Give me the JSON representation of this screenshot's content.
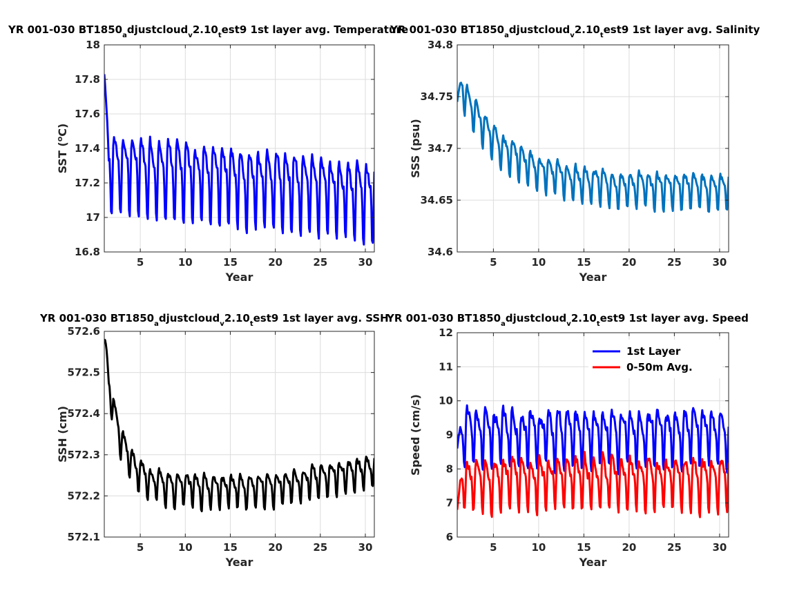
{
  "chart_data": [
    {
      "id": "sst",
      "type": "line",
      "title": {
        "pre": "YR 001-030 BT1850",
        "s1": "a",
        "m1": "djustcloud",
        "s2": "v",
        "m2": "2.10",
        "s3": "t",
        "post": "est9 1st layer avg. Temperature"
      },
      "xlabel": "Year",
      "ylabel": "SST (",
      "ylabel_sup": "o",
      "ylabel_end": "C)",
      "xlim": [
        1,
        31
      ],
      "ylim": [
        16.8,
        18
      ],
      "xticks": [
        5,
        10,
        15,
        20,
        25,
        30
      ],
      "yticks": [
        "16.8",
        "17",
        "17.2",
        "17.4",
        "17.6",
        "17.8",
        "18"
      ],
      "grid": true,
      "series": [
        {
          "color": "#0000ff",
          "gen": {
            "start": 17.83,
            "base": 17.32,
            "trend": -0.006,
            "amp": 0.32,
            "noise": 0.05,
            "period": 1,
            "seed": 11
          }
        }
      ]
    },
    {
      "id": "sss",
      "type": "line",
      "title": {
        "pre": "YR 001-030 BT1850",
        "s1": "a",
        "m1": "djustcloud",
        "s2": "v",
        "m2": "2.10",
        "s3": "t",
        "post": "est9 1st layer avg. Salinity"
      },
      "xlabel": "Year",
      "ylabel": "SSS (psu)",
      "xlim": [
        1,
        31
      ],
      "ylim": [
        34.6,
        34.8
      ],
      "xticks": [
        5,
        10,
        15,
        20,
        25,
        30
      ],
      "yticks": [
        "34.6",
        "34.65",
        "34.7",
        "34.75",
        "34.8"
      ],
      "grid": true,
      "series": [
        {
          "color": "#0072bd",
          "gen": {
            "start": 34.745,
            "base": 34.77,
            "trend": -0.0042,
            "trendDecay": 0.09,
            "floor": 34.662,
            "amp": 0.024,
            "noise": 0.006,
            "period": 1,
            "seed": 23
          }
        }
      ]
    },
    {
      "id": "ssh",
      "type": "line",
      "title": {
        "pre": "YR 001-030 BT1850",
        "s1": "a",
        "m1": "djustcloud",
        "s2": "v",
        "m2": "2.10",
        "s3": "t",
        "post": "est9 1st layer avg. SSH"
      },
      "xlabel": "Year",
      "ylabel": "SSH (cm)",
      "xlim": [
        1,
        31
      ],
      "ylim": [
        572.1,
        572.6
      ],
      "xticks": [
        5,
        10,
        15,
        20,
        25,
        30
      ],
      "yticks": [
        "572.1",
        "572.2",
        "572.3",
        "572.4",
        "572.5",
        "572.6"
      ],
      "grid": true,
      "series": [
        {
          "color": "#000000",
          "gen": {
            "start": 572.58,
            "base": 572.56,
            "trend": -0.045,
            "trendDecay": 0.25,
            "floor": 572.22,
            "rise": 0.004,
            "amp": 0.055,
            "noise": 0.015,
            "period": 1,
            "seed": 37
          }
        }
      ]
    },
    {
      "id": "speed",
      "type": "line",
      "title": {
        "pre": "YR 001-030 BT1850",
        "s1": "a",
        "m1": "djustcloud",
        "s2": "v",
        "m2": "2.10",
        "s3": "t",
        "post": "est9 1st layer avg. Speed"
      },
      "xlabel": "Year",
      "ylabel": "Speed (cm/s)",
      "xlim": [
        1,
        31
      ],
      "ylim": [
        6,
        12
      ],
      "xticks": [
        5,
        10,
        15,
        20,
        25,
        30
      ],
      "yticks": [
        "6",
        "7",
        "8",
        "9",
        "10",
        "11",
        "12"
      ],
      "grid": true,
      "legend": {
        "placement": "top-right"
      },
      "series": [
        {
          "name": "1st Layer",
          "color": "#0000ff",
          "gen": {
            "start": 8.6,
            "base": 9.1,
            "trend": 0.0,
            "amp": 1.15,
            "noise": 0.35,
            "period": 1,
            "seed": 41
          }
        },
        {
          "name": "0-50m Avg.",
          "color": "#ff0000",
          "gen": {
            "start": 6.8,
            "base": 7.75,
            "trend": 0.0,
            "amp": 1.05,
            "noise": 0.3,
            "period": 1,
            "seed": 53
          }
        }
      ]
    }
  ]
}
